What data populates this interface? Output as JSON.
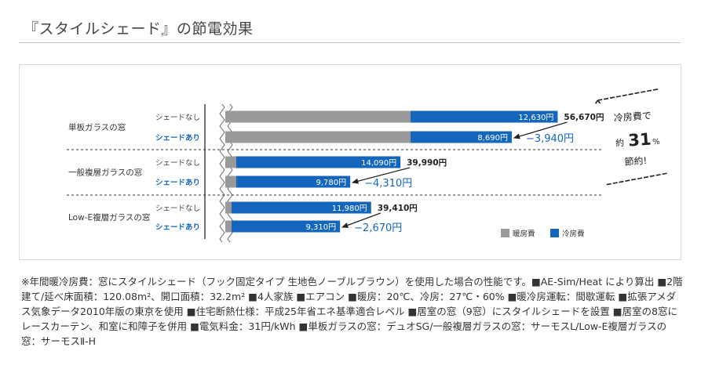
{
  "page": {
    "title": "『スタイルシェード』の節電効果",
    "footnote": "※年間暖冷房費：窓にスタイルシェード（フック固定タイプ 生地色ノーブルブラウン）を使用した場合の性能です。■AE-Sim/Heat により算出 ■2階建て/延べ床面積：120.08m²、開口面積：32.2m² ■4人家族 ■エアコン ■暖房：20℃、冷房：27℃・60% ■暖冷房運転：間歇運転 ■拡張アメダス気象データ2010年版の東京を使用 ■住宅断熱仕様：平成25年省エネ基準適合レベル ■居室の窓（9窓）にスタイルシェードを設置 ■居室の8窓にレースカーテン、和室に和障子を併用 ■電気料金：31円/kWh ■単板ガラスの窓：デュオSG/一般複層ガラスの窓：サーモスL/Low-E複層ガラスの窓：サーモスⅡ-H"
  },
  "chart_data": {
    "type": "bar",
    "stacked": true,
    "orientation": "horizontal",
    "axis_break": true,
    "groups": [
      {
        "label": "単板ガラスの窓",
        "rows": [
          {
            "label": "シェードなし",
            "heating": 36000,
            "cooling": 12630,
            "cooling_label": "12,630円",
            "total_label": "56,670円"
          },
          {
            "label": "シェードあり",
            "heating": 36000,
            "cooling": 8690,
            "cooling_label": "8,690円",
            "diff_label": "−3,940円"
          }
        ]
      },
      {
        "label": "一般複層ガラスの窓",
        "rows": [
          {
            "label": "シェードなし",
            "heating": 1400,
            "cooling": 14090,
            "cooling_label": "14,090円",
            "total_label": "39,990円"
          },
          {
            "label": "シェードあり",
            "heating": 1400,
            "cooling": 9780,
            "cooling_label": "9,780円",
            "diff_label": "−4,310円"
          }
        ]
      },
      {
        "label": "Low-E複層ガラスの窓",
        "rows": [
          {
            "label": "シェードなし",
            "heating": 1000,
            "cooling": 11980,
            "cooling_label": "11,980円",
            "total_label": "39,410円"
          },
          {
            "label": "シェードあり",
            "heating": 1000,
            "cooling": 9310,
            "cooling_label": "9,310円",
            "diff_label": "−2,670円"
          }
        ]
      }
    ],
    "legend": [
      {
        "name": "暖房費",
        "color": "#999999"
      },
      {
        "name": "冷房費",
        "color": "#1466bc"
      }
    ],
    "legend_position": "bottom-right",
    "callout": {
      "line1": "冷房費で",
      "pre": "約",
      "number": "31",
      "unit": "%",
      "line3": "節約!"
    },
    "colors": {
      "heating": "#999999",
      "cooling": "#1466bc",
      "shade_label": "#1466bc",
      "diff": "#1466bc"
    }
  }
}
